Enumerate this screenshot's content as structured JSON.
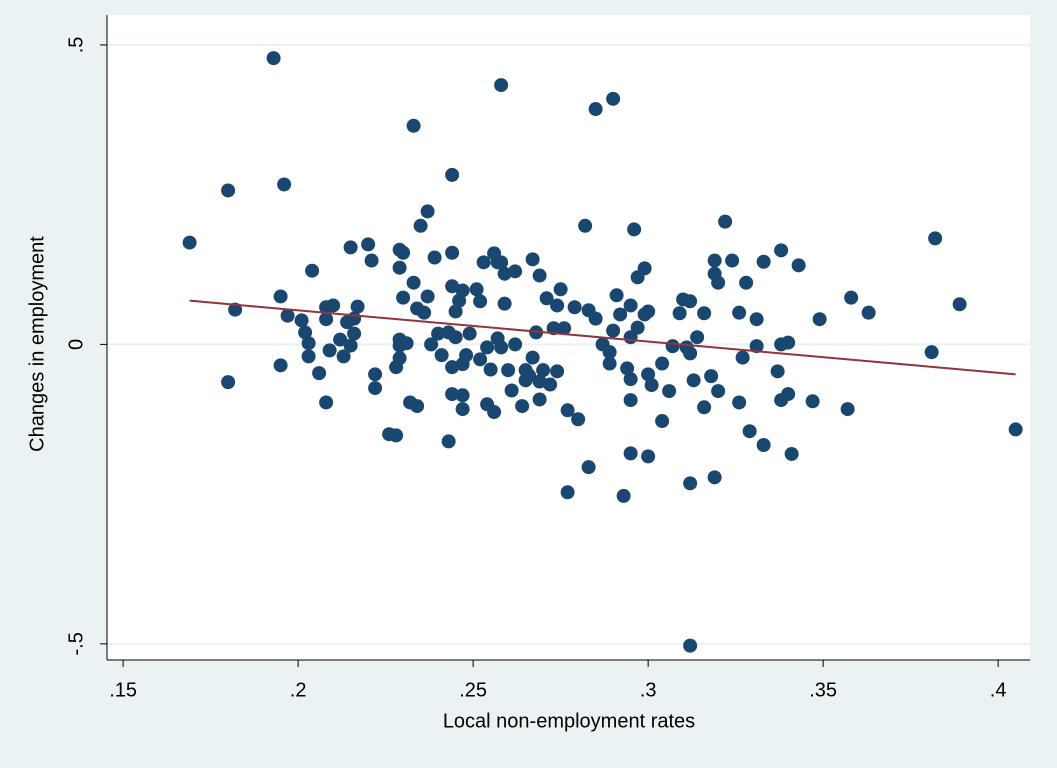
{
  "chart_data": {
    "type": "scatter",
    "x_label": "Local non-employment rates",
    "y_label": "Changes in employment",
    "x": [
      0.169,
      0.18,
      0.18,
      0.182,
      0.193,
      0.196,
      0.195,
      0.195,
      0.197,
      0.201,
      0.202,
      0.203,
      0.203,
      0.204,
      0.206,
      0.208,
      0.208,
      0.208,
      0.209,
      0.21,
      0.212,
      0.213,
      0.215,
      0.214,
      0.215,
      0.216,
      0.216,
      0.217,
      0.22,
      0.221,
      0.222,
      0.222,
      0.226,
      0.228,
      0.228,
      0.229,
      0.229,
      0.229,
      0.229,
      0.23,
      0.229,
      0.23,
      0.231,
      0.232,
      0.233,
      0.233,
      0.234,
      0.234,
      0.235,
      0.236,
      0.237,
      0.237,
      0.238,
      0.239,
      0.24,
      0.241,
      0.243,
      0.244,
      0.243,
      0.244,
      0.244,
      0.244,
      0.244,
      0.245,
      0.245,
      0.246,
      0.247,
      0.247,
      0.247,
      0.248,
      0.247,
      0.249,
      0.251,
      0.252,
      0.252,
      0.253,
      0.254,
      0.254,
      0.255,
      0.256,
      0.257,
      0.256,
      0.257,
      0.258,
      0.258,
      0.259,
      0.259,
      0.258,
      0.26,
      0.261,
      0.262,
      0.262,
      0.264,
      0.265,
      0.265,
      0.266,
      0.267,
      0.267,
      0.268,
      0.269,
      0.269,
      0.269,
      0.27,
      0.271,
      0.272,
      0.273,
      0.274,
      0.274,
      0.275,
      0.276,
      0.277,
      0.277,
      0.279,
      0.28,
      0.282,
      0.283,
      0.283,
      0.285,
      0.285,
      0.287,
      0.289,
      0.289,
      0.29,
      0.29,
      0.291,
      0.292,
      0.293,
      0.294,
      0.295,
      0.295,
      0.295,
      0.295,
      0.295,
      0.296,
      0.297,
      0.297,
      0.299,
      0.299,
      0.3,
      0.3,
      0.3,
      0.301,
      0.304,
      0.304,
      0.306,
      0.307,
      0.309,
      0.31,
      0.311,
      0.312,
      0.312,
      0.312,
      0.312,
      0.313,
      0.314,
      0.316,
      0.316,
      0.318,
      0.319,
      0.319,
      0.319,
      0.32,
      0.32,
      0.322,
      0.324,
      0.326,
      0.326,
      0.327,
      0.328,
      0.329,
      0.331,
      0.331,
      0.333,
      0.333,
      0.337,
      0.338,
      0.338,
      0.338,
      0.34,
      0.34,
      0.341,
      0.343,
      0.347,
      0.349,
      0.357,
      0.358,
      0.363,
      0.381,
      0.382,
      0.389,
      0.405
    ],
    "values": [
      0.17,
      0.257,
      -0.063,
      0.058,
      0.478,
      0.267,
      0.08,
      -0.035,
      0.048,
      0.04,
      0.02,
      0.002,
      -0.02,
      0.123,
      -0.048,
      -0.097,
      0.042,
      0.062,
      -0.01,
      0.065,
      0.008,
      -0.02,
      0.162,
      0.037,
      -0.002,
      0.018,
      0.043,
      0.063,
      0.167,
      0.14,
      -0.05,
      -0.073,
      -0.15,
      -0.152,
      -0.038,
      -0.023,
      -0.002,
      0.008,
      0.158,
      0.153,
      0.128,
      0.078,
      0.002,
      -0.097,
      0.365,
      0.103,
      0.06,
      -0.103,
      0.198,
      0.053,
      0.222,
      0.08,
      0,
      0.145,
      0.018,
      -0.018,
      0.02,
      0.153,
      -0.162,
      0.283,
      0.097,
      -0.038,
      -0.083,
      0.012,
      0.055,
      0.073,
      -0.085,
      -0.108,
      -0.033,
      -0.018,
      0.09,
      0.018,
      0.092,
      -0.025,
      0.072,
      0.137,
      -0.1,
      -0.005,
      -0.042,
      -0.113,
      0.01,
      0.152,
      0.137,
      0.433,
      0.137,
      0.118,
      0.068,
      -0.005,
      -0.043,
      -0.077,
      0.122,
      0,
      -0.103,
      -0.06,
      -0.043,
      -0.052,
      -0.022,
      0.142,
      0.02,
      -0.062,
      0.115,
      -0.092,
      -0.043,
      0.077,
      -0.067,
      0.027,
      -0.045,
      0.065,
      0.092,
      0.027,
      -0.11,
      -0.247,
      0.062,
      -0.125,
      0.198,
      0.057,
      -0.205,
      0.393,
      0.043,
      0,
      -0.032,
      -0.013,
      0.41,
      0.023,
      0.082,
      0.05,
      -0.253,
      -0.04,
      -0.058,
      -0.093,
      -0.182,
      0.065,
      0.012,
      0.192,
      0.112,
      0.028,
      0.127,
      0.05,
      -0.05,
      -0.187,
      0.055,
      -0.068,
      -0.032,
      -0.128,
      -0.078,
      -0.003,
      0.052,
      0.075,
      -0.005,
      -0.015,
      -0.232,
      0.072,
      -0.503,
      -0.06,
      0.012,
      -0.105,
      0.052,
      -0.053,
      -0.222,
      0.118,
      0.14,
      0.103,
      -0.078,
      0.205,
      0.14,
      -0.097,
      0.053,
      -0.022,
      0.103,
      -0.145,
      0.042,
      -0.003,
      0.138,
      -0.168,
      -0.045,
      0,
      0.157,
      -0.093,
      0.003,
      -0.083,
      -0.183,
      0.132,
      -0.095,
      0.042,
      -0.108,
      0.078,
      0.053,
      -0.013,
      0.177,
      0.067,
      -0.142
    ],
    "color": "#1a476f",
    "fit": {
      "x": [
        0.169,
        0.405
      ],
      "values": [
        0.073,
        -0.05
      ],
      "color": "#90353b"
    },
    "xlim": [
      0.1454,
      0.4091
    ],
    "ylim": [
      -0.527,
      0.55
    ],
    "xticks": [
      {
        "value": 0.15,
        "label": ".15"
      },
      {
        "value": 0.2,
        "label": ".2"
      },
      {
        "value": 0.25,
        "label": ".25"
      },
      {
        "value": 0.3,
        "label": ".3"
      },
      {
        "value": 0.35,
        "label": ".35"
      },
      {
        "value": 0.4,
        "label": ".4"
      }
    ],
    "yticks": [
      {
        "value": -0.5,
        "label": "-.5"
      },
      0,
      {
        "value": 0.5,
        "label": ".5"
      }
    ],
    "grid": true
  }
}
